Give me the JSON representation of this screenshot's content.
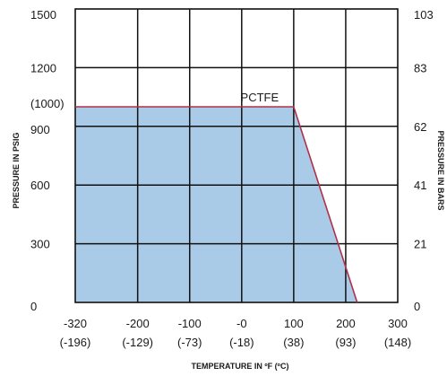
{
  "chart_data": {
    "type": "area",
    "xlabel": "TEMPERATURE IN ºF (ºC)",
    "ylabel_left": "PRESSURE IN PSIG",
    "ylabel_right": "PRESSURE IN BARS",
    "xlim": [
      -320,
      300
    ],
    "ylim": [
      0,
      1500
    ],
    "x_ticks": [
      {
        "value": -320,
        "f": "-320",
        "c": "(-196)"
      },
      {
        "value": -200,
        "f": "-200",
        "c": "(-129)"
      },
      {
        "value": -100,
        "f": "-100",
        "c": "(-73)"
      },
      {
        "value": 0,
        "f": "-0",
        "c": "(-18)"
      },
      {
        "value": 100,
        "f": "100",
        "c": "(38)"
      },
      {
        "value": 200,
        "f": "200",
        "c": "(93)"
      },
      {
        "value": 300,
        "f": "300",
        "c": "(148)"
      }
    ],
    "y_ticks_left": [
      {
        "value": 0,
        "label": "0"
      },
      {
        "value": 300,
        "label": "300"
      },
      {
        "value": 600,
        "label": "600"
      },
      {
        "value": 900,
        "label": "900"
      },
      {
        "value": 1000,
        "label": "(1000)"
      },
      {
        "value": 1200,
        "label": "1200"
      },
      {
        "value": 1500,
        "label": "1500"
      }
    ],
    "y_ticks_right": [
      {
        "value": 0,
        "label": "0"
      },
      {
        "value": 300,
        "label": "21"
      },
      {
        "value": 600,
        "label": "41"
      },
      {
        "value": 900,
        "label": "62"
      },
      {
        "value": 1200,
        "label": "83"
      },
      {
        "value": 1500,
        "label": "103"
      }
    ],
    "grid_x": [
      -200,
      -100,
      0,
      100,
      200
    ],
    "grid_y": [
      300,
      600,
      900,
      1200
    ],
    "series": [
      {
        "name": "PCTFE",
        "x": [
          -320,
          100,
          222
        ],
        "y": [
          1000,
          1000,
          0
        ]
      }
    ],
    "colors": {
      "fill": "#a9cbe8",
      "line": "#b0304a",
      "grid": "#111111"
    }
  }
}
